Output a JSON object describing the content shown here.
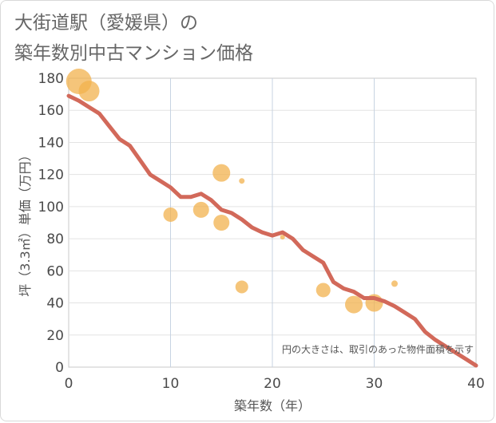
{
  "title_lines": [
    "大街道駅（愛媛県）の",
    "築年数別中古マンション価格"
  ],
  "chart_data": {
    "type": "scatter+line",
    "title": "大街道駅（愛媛県）の築年数別中古マンション価格",
    "xlabel": "築年数（年）",
    "ylabel": "坪（3.3㎡）単価（万円）",
    "xlim": [
      0,
      40
    ],
    "ylim": [
      0,
      180
    ],
    "xticks": [
      0,
      10,
      20,
      30,
      40
    ],
    "yticks": [
      0,
      20,
      40,
      60,
      80,
      100,
      120,
      140,
      160,
      180
    ],
    "grid": true,
    "note": "円の大きさは、取引のあった物件面積を示す",
    "bubble_color": "#f2b24e",
    "line_color": "#d2695a",
    "bubbles": [
      {
        "x": 1,
        "y": 178,
        "size": 16
      },
      {
        "x": 2,
        "y": 172,
        "size": 13
      },
      {
        "x": 10,
        "y": 95,
        "size": 9
      },
      {
        "x": 13,
        "y": 98,
        "size": 10
      },
      {
        "x": 15,
        "y": 121,
        "size": 11
      },
      {
        "x": 15,
        "y": 90,
        "size": 10
      },
      {
        "x": 17,
        "y": 116,
        "size": 3.5
      },
      {
        "x": 17,
        "y": 50,
        "size": 8
      },
      {
        "x": 21,
        "y": 81,
        "size": 3
      },
      {
        "x": 25,
        "y": 48,
        "size": 9
      },
      {
        "x": 28,
        "y": 39,
        "size": 11
      },
      {
        "x": 30,
        "y": 40,
        "size": 11
      },
      {
        "x": 32,
        "y": 52,
        "size": 4
      }
    ],
    "trend_line": {
      "x": [
        0,
        1,
        2,
        3,
        4,
        5,
        6,
        7,
        8,
        9,
        10,
        11,
        12,
        13,
        14,
        15,
        16,
        17,
        18,
        19,
        20,
        21,
        22,
        23,
        24,
        25,
        26,
        27,
        28,
        29,
        30,
        31,
        32,
        33,
        34,
        35,
        36,
        37,
        38,
        39,
        40
      ],
      "y": [
        169,
        166,
        162,
        158,
        150,
        142,
        138,
        129,
        120,
        116,
        112,
        106,
        106,
        108,
        104,
        98,
        96,
        92,
        87,
        84,
        82,
        84,
        80,
        73,
        69,
        65,
        53,
        49,
        47,
        43,
        43,
        41,
        38,
        34,
        30,
        22,
        17,
        13,
        9,
        5,
        1
      ]
    }
  }
}
